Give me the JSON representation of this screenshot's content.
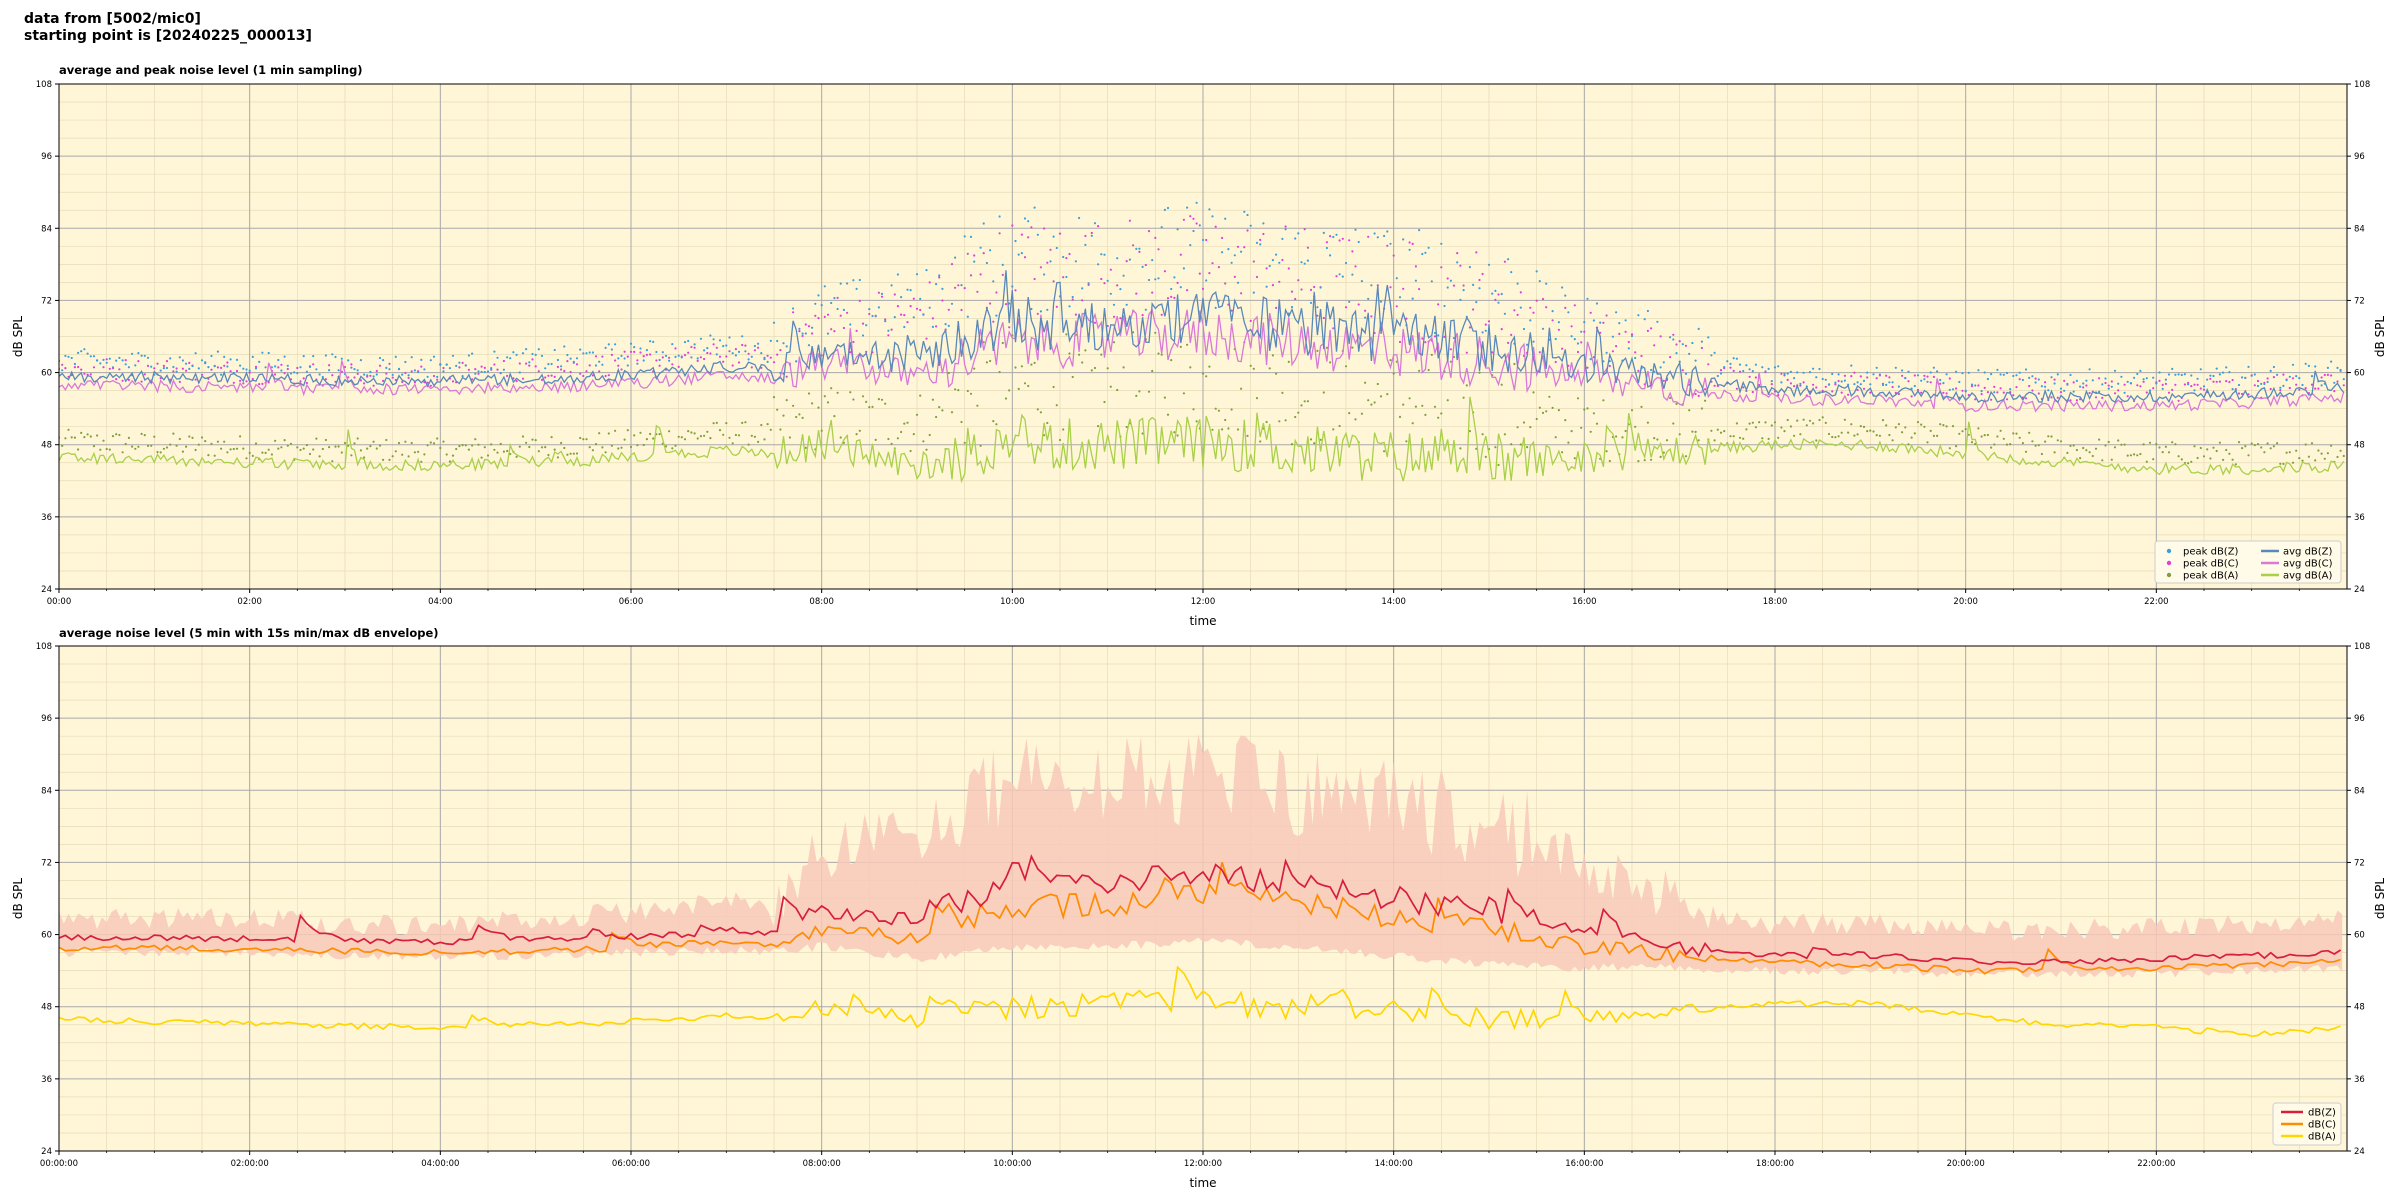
{
  "header": {
    "line1": "data from [5002/mic0]",
    "line2": "starting point is [20240225_000013]"
  },
  "colors": {
    "plot_bg": "#fff6d8",
    "grid_major": "#a8a8a8",
    "grid_minor": "#e6dcb8",
    "peak_z": "#3aa0dc",
    "peak_c": "#e040d8",
    "peak_a": "#7fa03c",
    "avg_z": "#5a88b8",
    "avg_c": "#d878d8",
    "avg_a": "#a8d048",
    "db_z": "#d81e3c",
    "db_c": "#ff8c00",
    "db_a": "#ffd700",
    "envelope": "#f8c8b8"
  },
  "chart_data": [
    {
      "type": "line",
      "title": "average and peak noise level (1 min sampling)",
      "xlabel": "time",
      "ylabel": "dB SPL",
      "ylim": [
        24,
        108
      ],
      "yticks": [
        "24",
        "36",
        "48",
        "60",
        "72",
        "84",
        "96",
        "108"
      ],
      "xlim_hours": [
        0,
        24
      ],
      "xticks": [
        "00:00",
        "02:00",
        "04:00",
        "06:00",
        "08:00",
        "10:00",
        "12:00",
        "14:00",
        "16:00",
        "18:00",
        "20:00",
        "22:00"
      ],
      "grid": true,
      "legend_position": "bottom-right",
      "legend": [
        {
          "label": "peak dB(Z)",
          "kind": "marker",
          "color": "#3aa0dc"
        },
        {
          "label": "peak dB(C)",
          "kind": "marker",
          "color": "#e040d8"
        },
        {
          "label": "peak dB(A)",
          "kind": "marker",
          "color": "#7fa03c"
        },
        {
          "label": "avg dB(Z)",
          "kind": "line",
          "color": "#5a88b8"
        },
        {
          "label": "avg dB(C)",
          "kind": "line",
          "color": "#d878d8"
        },
        {
          "label": "avg dB(A)",
          "kind": "line",
          "color": "#a8d048"
        }
      ],
      "x": [
        0,
        1,
        2,
        3,
        4,
        5,
        6,
        7,
        7.5,
        8,
        9,
        10,
        11,
        12,
        13,
        14,
        15,
        16,
        17,
        18,
        19,
        20,
        21,
        22,
        23,
        24
      ],
      "series": [
        {
          "name": "avg dB(Z)",
          "values": [
            59.5,
            59.2,
            59,
            58.6,
            58.6,
            59,
            59.6,
            61,
            60.5,
            63.5,
            62,
            68,
            68,
            69,
            67.5,
            66,
            64.5,
            61,
            59,
            57,
            57,
            56,
            56,
            56,
            56.5,
            57.5
          ]
        },
        {
          "name": "avg dB(C)",
          "values": [
            58,
            57.8,
            57.5,
            57.2,
            57.2,
            57.5,
            58.2,
            59.5,
            59,
            61.5,
            59.5,
            65,
            65.5,
            66.5,
            65,
            63.5,
            62,
            59,
            57,
            55.5,
            55.5,
            54.5,
            54.5,
            54.5,
            55,
            56
          ]
        },
        {
          "name": "avg dB(A)",
          "values": [
            46,
            45.5,
            45,
            44.6,
            44.6,
            45,
            45.8,
            47,
            46.5,
            48,
            44.5,
            48,
            48,
            48.5,
            47,
            46,
            45.5,
            45.5,
            47,
            48,
            48,
            46.5,
            45,
            44,
            44,
            44.5
          ]
        },
        {
          "name": "peak dB(Z)",
          "values": [
            61.5,
            61,
            61,
            60.5,
            60.5,
            61.5,
            62.5,
            64,
            63,
            68,
            70,
            76,
            76,
            77,
            75,
            73,
            71,
            66,
            62,
            59,
            59,
            58,
            58,
            58,
            58.5,
            59.5
          ]
        },
        {
          "name": "peak dB(C)",
          "values": [
            60,
            59.8,
            59.5,
            59,
            59,
            60,
            61,
            62.5,
            61.5,
            66,
            68,
            74,
            74,
            75,
            73,
            71,
            69,
            64,
            60,
            57.5,
            57.5,
            56.5,
            56.5,
            56.5,
            57,
            58
          ]
        },
        {
          "name": "peak dB(A)",
          "values": [
            48,
            47.5,
            47,
            46.5,
            46.5,
            47,
            48,
            49.5,
            49,
            51,
            50,
            55,
            55,
            55.5,
            54,
            52.5,
            51,
            49,
            49,
            50,
            50,
            48.5,
            47,
            46,
            46,
            46.5
          ]
        }
      ]
    },
    {
      "type": "line",
      "title": "average noise level (5 min with 15s min/max dB envelope)",
      "xlabel": "time",
      "ylabel": "dB SPL",
      "ylim": [
        24,
        108
      ],
      "yticks": [
        "24",
        "36",
        "48",
        "60",
        "72",
        "84",
        "96",
        "108"
      ],
      "xlim_hours": [
        0,
        24
      ],
      "xticks": [
        "00:00:00",
        "02:00:00",
        "04:00:00",
        "06:00:00",
        "08:00:00",
        "10:00:00",
        "12:00:00",
        "14:00:00",
        "16:00:00",
        "18:00:00",
        "20:00:00",
        "22:00:00"
      ],
      "grid": true,
      "legend_position": "bottom-right",
      "legend": [
        {
          "label": "dB(Z)",
          "kind": "line",
          "color": "#d81e3c"
        },
        {
          "label": "dB(C)",
          "kind": "line",
          "color": "#ff8c00"
        },
        {
          "label": "dB(A)",
          "kind": "line",
          "color": "#ffd700"
        }
      ],
      "x": [
        0,
        1,
        2,
        3,
        4,
        5,
        6,
        7,
        7.5,
        8,
        9,
        10,
        11,
        12,
        13,
        14,
        15,
        16,
        17,
        18,
        19,
        20,
        21,
        22,
        23,
        24
      ],
      "series": [
        {
          "name": "dB(Z)",
          "values": [
            59.5,
            59.5,
            59.3,
            59,
            58.8,
            59,
            59.5,
            60.5,
            60,
            63,
            62.5,
            68,
            68.5,
            70,
            68.5,
            66,
            64,
            60.5,
            58,
            56.5,
            56.5,
            55.5,
            55.5,
            56,
            56.5,
            57
          ]
        },
        {
          "name": "dB(C)",
          "values": [
            57.8,
            57.8,
            57.5,
            57.2,
            57,
            57.3,
            57.8,
            58.8,
            58.3,
            60.5,
            59.5,
            64.5,
            65,
            66.5,
            65,
            63,
            61,
            58,
            56.5,
            55.3,
            55,
            54,
            54,
            54.5,
            55,
            55.5
          ]
        },
        {
          "name": "dB(A)",
          "values": [
            46,
            45.5,
            45.2,
            44.8,
            44.6,
            45,
            45.5,
            46.5,
            46.2,
            48,
            45.5,
            48,
            48.5,
            49,
            47.5,
            46,
            45.5,
            45.5,
            47,
            48.5,
            48.5,
            46.5,
            45,
            44.5,
            43.5,
            44.5
          ]
        }
      ],
      "envelope": {
        "name": "15s min/max dB",
        "min": [
          57,
          57,
          57,
          56.5,
          56.5,
          56.5,
          57,
          57.5,
          57,
          58,
          56,
          58,
          58,
          59,
          58,
          56.5,
          55,
          54.5,
          54.5,
          54,
          54,
          53.5,
          53.5,
          53.5,
          54,
          54.5
        ],
        "max": [
          62,
          62,
          62,
          61,
          61,
          62,
          63,
          65,
          63.5,
          72,
          75,
          82,
          82,
          83,
          81,
          78,
          76,
          70,
          63,
          61,
          61,
          60,
          60,
          60.5,
          61,
          62
        ]
      }
    }
  ]
}
